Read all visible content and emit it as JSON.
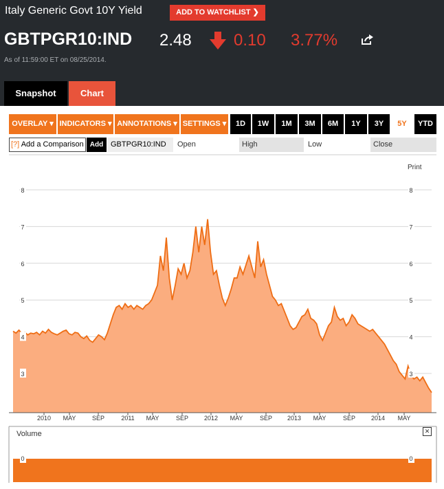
{
  "header": {
    "title": "Italy Generic Govt 10Y Yield",
    "watchlist_label": "ADD TO WATCHLIST",
    "ticker": "GBTPGR10:IND",
    "price": "2.48",
    "change": "0.10",
    "change_pct": "3.77%",
    "as_of": "As of 11:59:00 ET on 08/25/2014."
  },
  "tabs": {
    "snapshot": "Snapshot",
    "chart": "Chart"
  },
  "toolbar": {
    "menus": [
      "OVERLAY ▾",
      "INDICATORS ▾",
      "ANNOTATIONS ▾",
      "SETTINGS ▾"
    ],
    "ranges": [
      "1D",
      "1W",
      "1M",
      "3M",
      "6M",
      "1Y",
      "3Y",
      "5Y",
      "YTD"
    ],
    "active_range": "5Y"
  },
  "compare": {
    "help_mark": "[?]",
    "placeholder": "Add a Comparison",
    "add_label": "Add",
    "symbol": "GBTPGR10:IND",
    "open_label": "Open",
    "high_label": "High",
    "low_label": "Low",
    "close_label": "Close"
  },
  "print_label": "Print",
  "volume_label": "Volume",
  "close_icon": "close-icon",
  "colors": {
    "accent": "#f0741d",
    "down": "#e33b2e",
    "area_fill": "#fbad7f",
    "line": "#ee6d14",
    "header_bg": "#262a2e"
  },
  "chart_data": {
    "type": "area",
    "x_tick_labels": [
      "2010",
      "MAY",
      "SEP",
      "2011",
      "MAY",
      "SEP",
      "2012",
      "MAY",
      "SEP",
      "2013",
      "MAY",
      "SEP",
      "2014",
      "MAY"
    ],
    "y_ticks": [
      3,
      4,
      5,
      6,
      7,
      8
    ],
    "ylim": [
      2.1,
      8.6
    ],
    "grid": true,
    "series": [
      {
        "values": [
          4.15,
          4.1,
          4.18,
          4.08,
          4.12,
          4.05,
          4.1,
          4.08,
          4.12,
          4.05,
          4.15,
          4.1,
          4.2,
          4.12,
          4.08,
          4.05,
          4.1,
          4.15,
          4.18,
          4.08,
          4.05,
          4.12,
          4.1,
          4.0,
          3.95,
          4.02,
          3.9,
          3.85,
          3.95,
          4.05,
          4.0,
          3.92,
          4.1,
          4.35,
          4.6,
          4.8,
          4.85,
          4.75,
          4.9,
          4.8,
          4.85,
          4.75,
          4.85,
          4.8,
          4.75,
          4.85,
          4.9,
          5.0,
          5.2,
          5.4,
          6.2,
          5.8,
          6.7,
          5.6,
          5.0,
          5.4,
          5.85,
          5.7,
          6.0,
          5.6,
          5.8,
          6.3,
          7.0,
          6.3,
          7.0,
          6.5,
          7.2,
          6.3,
          5.7,
          5.8,
          5.4,
          5.05,
          4.85,
          5.05,
          5.3,
          5.6,
          5.6,
          5.9,
          5.7,
          5.95,
          6.2,
          5.9,
          5.6,
          6.6,
          5.9,
          6.1,
          5.7,
          5.4,
          5.1,
          5.0,
          4.85,
          4.9,
          4.7,
          4.5,
          4.3,
          4.2,
          4.25,
          4.4,
          4.55,
          4.6,
          4.75,
          4.5,
          4.45,
          4.35,
          4.05,
          3.9,
          4.1,
          4.3,
          4.4,
          4.8,
          4.55,
          4.45,
          4.5,
          4.3,
          4.4,
          4.6,
          4.5,
          4.35,
          4.3,
          4.25,
          4.2,
          4.15,
          4.2,
          4.1,
          4.0,
          3.9,
          3.8,
          3.65,
          3.5,
          3.35,
          3.25,
          3.05,
          2.95,
          2.85,
          3.2,
          2.95,
          2.85,
          2.9,
          2.8,
          2.9,
          2.75,
          2.6,
          2.48
        ]
      }
    ],
    "volume": {
      "values": [
        0
      ],
      "y_ticks": [
        0
      ]
    }
  }
}
